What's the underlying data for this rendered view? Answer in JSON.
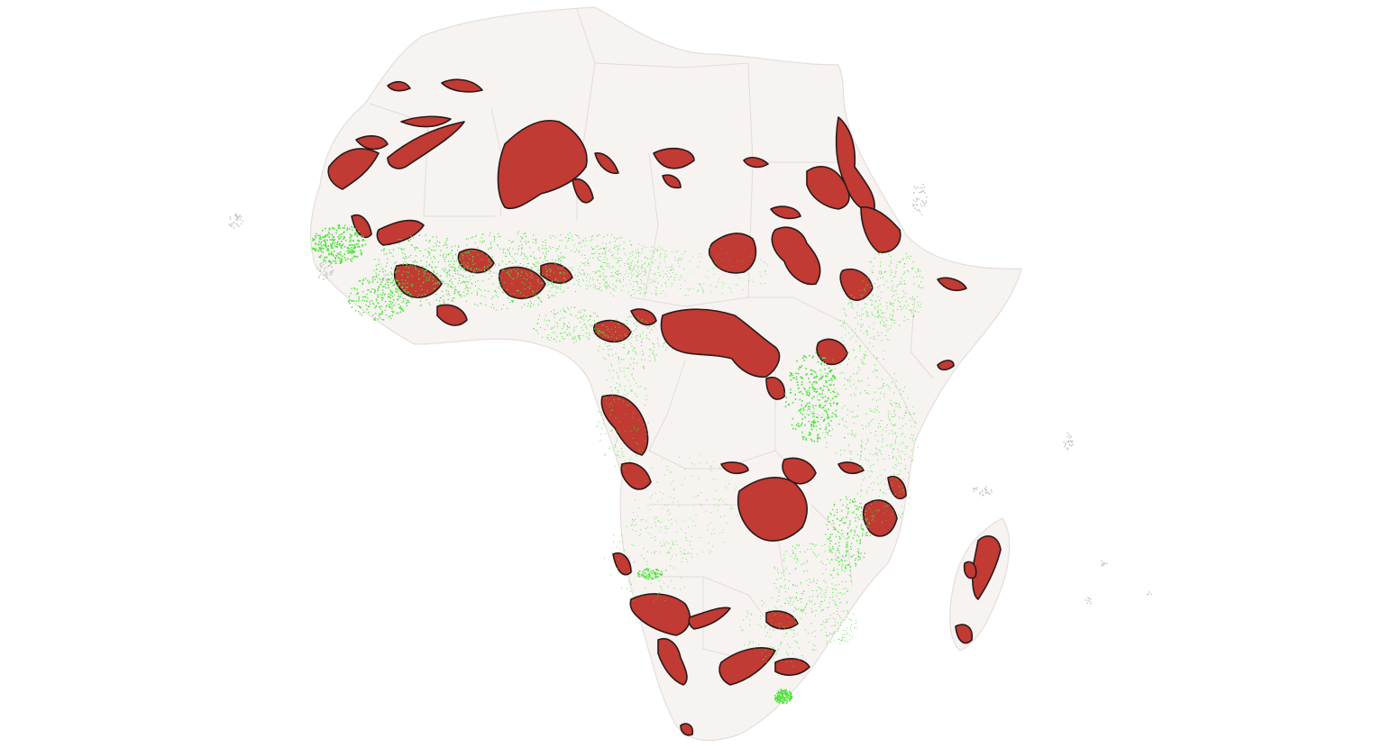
{
  "map": {
    "region": "Africa",
    "colors": {
      "background": "#ffffff",
      "land": "#f6f3f1",
      "country_border": "#e2dcd9",
      "red_zone_fill": "#c13a33",
      "red_zone_outline": "#2a1a1a",
      "green_points": "#4ee23c",
      "coastal_points": "#c9c9c9"
    },
    "layers": [
      "country-polygons",
      "red-outlined-areas",
      "green-point-density"
    ]
  }
}
